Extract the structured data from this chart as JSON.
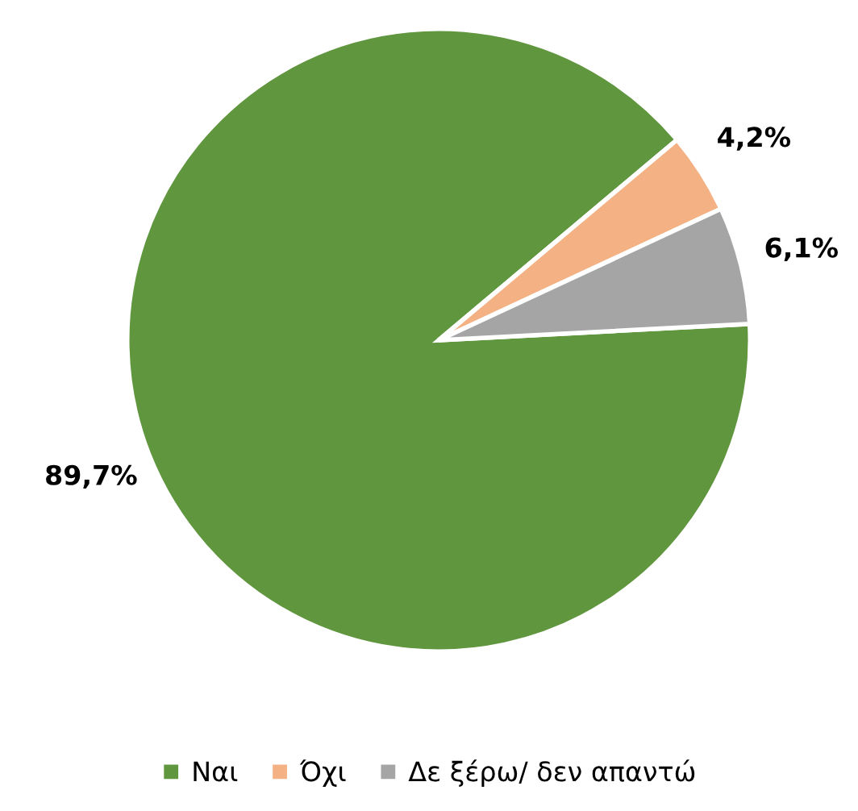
{
  "chart_data": {
    "type": "pie",
    "categories": [
      "Ναι",
      "Όχι",
      "Δε ξέρω/ δεν απαντώ"
    ],
    "values": [
      89.7,
      4.2,
      6.1
    ],
    "colors": [
      "#5f963e",
      "#f4b183",
      "#a5a5a5"
    ],
    "value_labels": [
      "89,7%",
      "4,2%",
      "6,1%"
    ],
    "legend": "bottom"
  }
}
